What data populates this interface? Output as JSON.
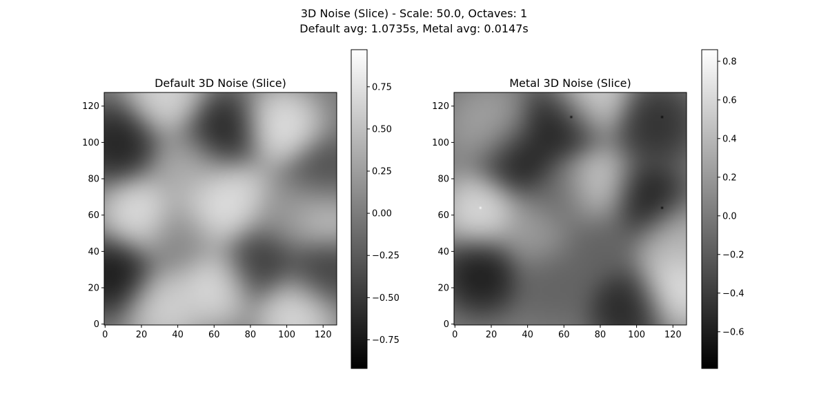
{
  "figure": {
    "suptitle_line1": "3D Noise (Slice) - Scale: 50.0, Octaves: 1",
    "suptitle_line2": "Default avg: 1.0735s, Metal avg: 0.0147s"
  },
  "chart_data": [
    {
      "type": "heatmap",
      "title": "Default 3D Noise (Slice)",
      "colormap": "gray",
      "x_ticks": [
        0,
        20,
        40,
        60,
        80,
        100,
        120
      ],
      "y_ticks": [
        0,
        20,
        40,
        60,
        80,
        100,
        120
      ],
      "xlim": [
        -0.5,
        127.5
      ],
      "ylim": [
        -0.5,
        127.5
      ],
      "grid_size": [
        128,
        128
      ],
      "value_range": [
        -0.92,
        0.97
      ],
      "colorbar_ticks": [
        "0.75",
        "0.50",
        "0.25",
        "0.00",
        "−0.25",
        "−0.50",
        "−0.75"
      ],
      "colorbar_tick_values": [
        0.75,
        0.5,
        0.25,
        0.0,
        -0.25,
        -0.5,
        -0.75
      ],
      "blobs": [
        {
          "x": 8,
          "y": 100,
          "value": -0.85
        },
        {
          "x": 65,
          "y": 105,
          "value": -0.85
        },
        {
          "x": 33,
          "y": 125,
          "value": 0.85
        },
        {
          "x": 97,
          "y": 108,
          "value": 0.95
        },
        {
          "x": 20,
          "y": 60,
          "value": 0.95
        },
        {
          "x": 60,
          "y": 62,
          "value": 0.9
        },
        {
          "x": 72,
          "y": 70,
          "value": 0.85
        },
        {
          "x": 47,
          "y": 85,
          "value": 0.45
        },
        {
          "x": 6,
          "y": 27,
          "value": -0.95
        },
        {
          "x": 85,
          "y": 35,
          "value": -0.65
        },
        {
          "x": 120,
          "y": 80,
          "value": -0.5
        },
        {
          "x": 120,
          "y": 30,
          "value": -0.6
        },
        {
          "x": 32,
          "y": 10,
          "value": 0.8
        },
        {
          "x": 60,
          "y": 22,
          "value": 0.9
        },
        {
          "x": 105,
          "y": 7,
          "value": 0.9
        },
        {
          "x": 120,
          "y": 60,
          "value": 0.75
        },
        {
          "x": 42,
          "y": 48,
          "value": 0.0
        },
        {
          "x": 100,
          "y": 60,
          "value": 0.2
        }
      ]
    },
    {
      "type": "heatmap",
      "title": "Metal 3D Noise (Slice)",
      "colormap": "gray",
      "x_ticks": [
        0,
        20,
        40,
        60,
        80,
        100,
        120
      ],
      "y_ticks": [
        0,
        20,
        40,
        60,
        80,
        100,
        120
      ],
      "xlim": [
        -0.5,
        127.5
      ],
      "ylim": [
        -0.5,
        127.5
      ],
      "grid_size": [
        128,
        128
      ],
      "value_range": [
        -0.79,
        0.86
      ],
      "colorbar_ticks": [
        "0.8",
        "0.6",
        "0.4",
        "0.2",
        "0.0",
        "−0.2",
        "−0.4",
        "−0.6"
      ],
      "colorbar_tick_values": [
        0.8,
        0.6,
        0.4,
        0.2,
        0.0,
        -0.2,
        -0.4,
        -0.6
      ],
      "blobs": [
        {
          "x": 58,
          "y": 110,
          "value": -0.75
        },
        {
          "x": 35,
          "y": 90,
          "value": -0.75
        },
        {
          "x": 20,
          "y": 108,
          "value": 0.35
        },
        {
          "x": 75,
          "y": 125,
          "value": 0.75
        },
        {
          "x": 110,
          "y": 110,
          "value": -0.6
        },
        {
          "x": 104,
          "y": 68,
          "value": -0.78
        },
        {
          "x": 78,
          "y": 75,
          "value": 0.75
        },
        {
          "x": 15,
          "y": 62,
          "value": 0.8
        },
        {
          "x": 15,
          "y": 28,
          "value": -0.78
        },
        {
          "x": 95,
          "y": 10,
          "value": -0.7
        },
        {
          "x": 122,
          "y": 20,
          "value": 0.85
        },
        {
          "x": 45,
          "y": 50,
          "value": 0.3
        },
        {
          "x": 78,
          "y": 45,
          "value": -0.2
        },
        {
          "x": 55,
          "y": 25,
          "value": -0.2
        },
        {
          "x": 120,
          "y": 45,
          "value": 0.5
        },
        {
          "x": 60,
          "y": 70,
          "value": -0.2
        }
      ],
      "outlier_points": [
        {
          "x": 64,
          "y": 114,
          "value": -0.79
        },
        {
          "x": 114,
          "y": 114,
          "value": -0.79
        },
        {
          "x": 114,
          "y": 64,
          "value": -0.79
        },
        {
          "x": 14,
          "y": 64,
          "value": 0.86
        }
      ]
    }
  ]
}
